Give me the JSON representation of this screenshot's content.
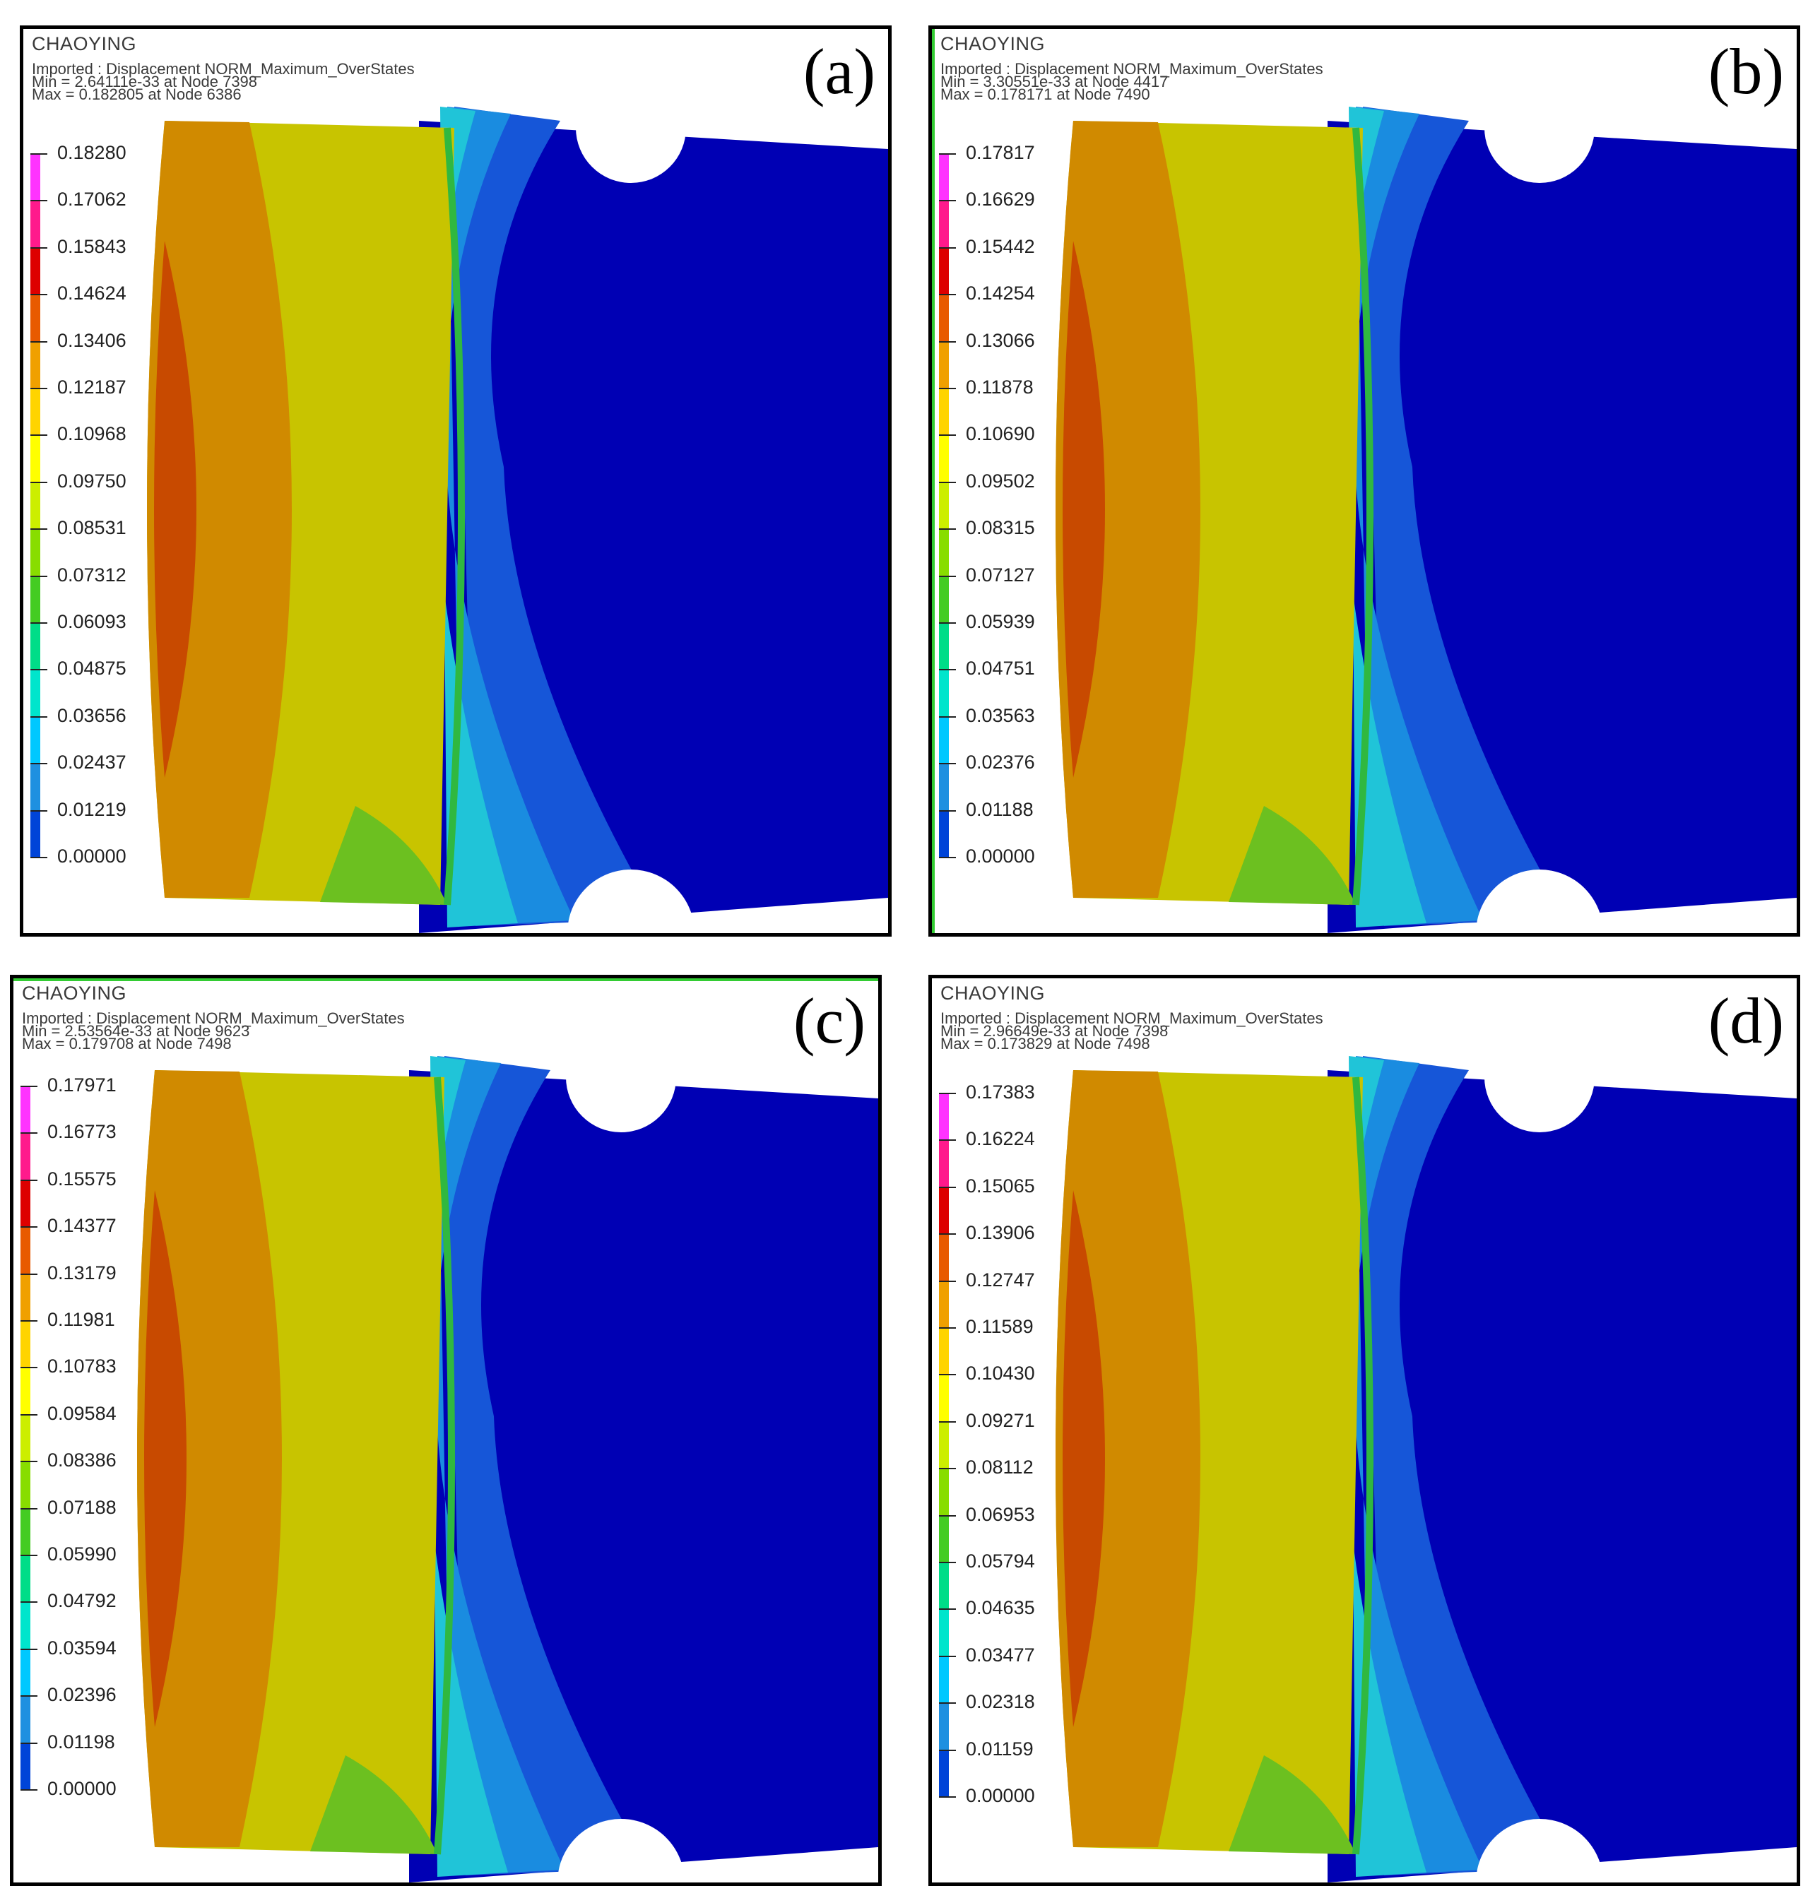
{
  "panels": [
    {
      "id": "a",
      "label": "(a)",
      "brand": "CHAOYING",
      "line1": "Imported : Displacement NORM_Maximum_OverStates",
      "line2": "Min = 2.64111e-33 at Node 7398",
      "line3": "Max = 0.182805 at Node 6386",
      "legend": [
        "0.18280",
        "0.17062",
        "0.15843",
        "0.14624",
        "0.13406",
        "0.12187",
        "0.10968",
        "0.09750",
        "0.08531",
        "0.07312",
        "0.06093",
        "0.04875",
        "0.03656",
        "0.02437",
        "0.01219",
        "0.00000"
      ]
    },
    {
      "id": "b",
      "label": "(b)",
      "brand": "CHAOYING",
      "line1": "Imported : Displacement NORM_Maximum_OverStates",
      "line2": "Min = 3.30551e-33 at Node 4417",
      "line3": "Max = 0.178171 at Node 7490",
      "legend": [
        "0.17817",
        "0.16629",
        "0.15442",
        "0.14254",
        "0.13066",
        "0.11878",
        "0.10690",
        "0.09502",
        "0.08315",
        "0.07127",
        "0.05939",
        "0.04751",
        "0.03563",
        "0.02376",
        "0.01188",
        "0.00000"
      ]
    },
    {
      "id": "c",
      "label": "(c)",
      "brand": "CHAOYING",
      "line1": "Imported : Displacement NORM_Maximum_OverStates",
      "line2": "Min = 2.53564e-33 at Node 9623",
      "line3": "Max = 0.179708 at Node 7498",
      "legend": [
        "0.17971",
        "0.16773",
        "0.15575",
        "0.14377",
        "0.13179",
        "0.11981",
        "0.10783",
        "0.09584",
        "0.08386",
        "0.07188",
        "0.05990",
        "0.04792",
        "0.03594",
        "0.02396",
        "0.01198",
        "0.00000"
      ]
    },
    {
      "id": "d",
      "label": "(d)",
      "brand": "CHAOYING",
      "line1": "Imported : Displacement NORM_Maximum_OverStates",
      "line2": "Min = 2.96649e-33 at Node 7398",
      "line3": "Max = 0.173829 at Node 7498",
      "legend": [
        "0.17383",
        "0.16224",
        "0.15065",
        "0.13906",
        "0.12747",
        "0.11589",
        "0.10430",
        "0.09271",
        "0.08112",
        "0.06953",
        "0.05794",
        "0.04635",
        "0.03477",
        "0.02318",
        "0.01159",
        "0.00000"
      ]
    }
  ],
  "colors": {
    "legend_bands": [
      "#ff33ff",
      "#ff1a8c",
      "#dd0000",
      "#e85a00",
      "#f0a000",
      "#ffd400",
      "#ffff00",
      "#ccee00",
      "#88dd00",
      "#44cc22",
      "#00dd88",
      "#00e5cc",
      "#00c8ff",
      "#1e90e0",
      "#0044d8",
      "#0000cc"
    ],
    "accent_green": "#33cc33"
  }
}
